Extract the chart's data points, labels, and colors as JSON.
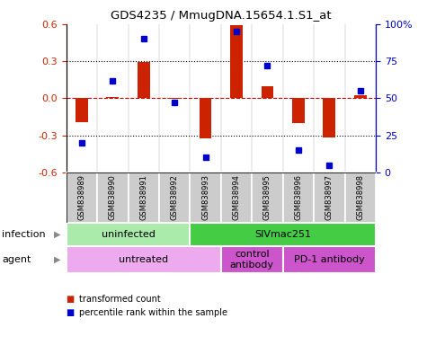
{
  "title": "GDS4235 / MmugDNA.15654.1.S1_at",
  "samples": [
    "GSM838989",
    "GSM838990",
    "GSM838991",
    "GSM838992",
    "GSM838993",
    "GSM838994",
    "GSM838995",
    "GSM838996",
    "GSM838997",
    "GSM838998"
  ],
  "transformed_count": [
    -0.19,
    0.01,
    0.295,
    -0.005,
    -0.325,
    0.595,
    0.1,
    -0.2,
    -0.32,
    0.025
  ],
  "percentile_rank": [
    20,
    62,
    90,
    47,
    10,
    95,
    72,
    15,
    5,
    55
  ],
  "ylim": [
    -0.6,
    0.6
  ],
  "yticks_left": [
    -0.6,
    -0.3,
    0.0,
    0.3,
    0.6
  ],
  "yticks_right": [
    0,
    25,
    50,
    75,
    100
  ],
  "bar_color": "#cc2200",
  "dot_color": "#0000cc",
  "zero_line_color": "#cc0000",
  "infection_groups": [
    {
      "label": "uninfected",
      "start": 0,
      "end": 4,
      "color": "#aaeaaa"
    },
    {
      "label": "SIVmac251",
      "start": 4,
      "end": 10,
      "color": "#44cc44"
    }
  ],
  "agent_groups": [
    {
      "label": "untreated",
      "start": 0,
      "end": 5,
      "color": "#eeaaee"
    },
    {
      "label": "control\nantibody",
      "start": 5,
      "end": 7,
      "color": "#cc55cc"
    },
    {
      "label": "PD-1 antibody",
      "start": 7,
      "end": 10,
      "color": "#cc55cc"
    }
  ],
  "legend_bar_label": "transformed count",
  "legend_dot_label": "percentile rank within the sample",
  "xlabel_infection": "infection",
  "xlabel_agent": "agent",
  "sample_bg_color": "#cccccc"
}
